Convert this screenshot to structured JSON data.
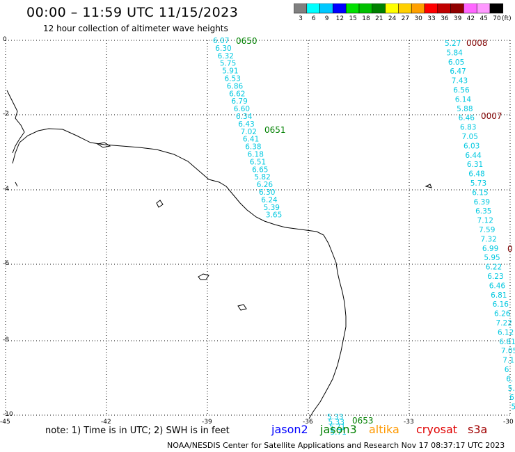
{
  "header": {
    "title": "00:00 – 11:59 UTC 11/15/2023",
    "subtitle": "12 hour collection of altimeter wave heights"
  },
  "color_scale": {
    "labels": [
      "3",
      "6",
      "9",
      "12",
      "15",
      "18",
      "21",
      "24",
      "27",
      "30",
      "33",
      "36",
      "39",
      "42",
      "45",
      "70"
    ],
    "unit": "(ft)",
    "colors": [
      "#808080",
      "#00ffff",
      "#00c8ff",
      "#0000ff",
      "#00e000",
      "#00c000",
      "#008000",
      "#ffff00",
      "#ffd000",
      "#ffa000",
      "#ff0000",
      "#c00000",
      "#900000",
      "#ff66ff",
      "#ff99ff",
      "#000000"
    ]
  },
  "axes": {
    "x_ticks": [
      "-45",
      "-42",
      "-39",
      "-36",
      "-33",
      "-30"
    ],
    "y_ticks": [
      "0",
      "-2",
      "-4",
      "-6",
      "-8",
      "-10"
    ]
  },
  "tracks": [
    {
      "color": "#00c8e0",
      "values": [
        "6.07",
        "6.30",
        "6.32",
        "5.75",
        "5.91",
        "6.53",
        "6.86",
        "6.62",
        "6.79",
        "6.60",
        "6.34",
        "6.43",
        "7.02",
        "6.41",
        "6.38",
        "6.18",
        "6.51",
        "6.65",
        "5.82",
        "6.26",
        "6.30",
        "6.24",
        "5.39",
        "3.65"
      ]
    },
    {
      "color": "#00c8e0",
      "values": [
        "5.27",
        "5.84",
        "6.05",
        "6.47",
        "7.43",
        "6.56",
        "6.14",
        "5.88",
        "6.46",
        "6.83",
        "7.05",
        "6.03",
        "6.44",
        "6.31",
        "6.48",
        "5.73",
        "6.15",
        "6.39",
        "6.35",
        "7.12",
        "7.59",
        "7.32",
        "6.99",
        "5.95",
        "6.22",
        "6.23",
        "6.46",
        "6.81",
        "6.16",
        "6.26",
        "7.22",
        "6.12",
        "6.81",
        "7.05",
        "7.1",
        "6",
        "6.",
        "5.",
        "6",
        "5"
      ]
    },
    {
      "color": "#00c8e0",
      "values": [
        "5.33",
        "5.33",
        "5.71",
        "5.71"
      ]
    }
  ],
  "time_labels": [
    {
      "text": "0650",
      "color": "#008000"
    },
    {
      "text": "0651",
      "color": "#008000"
    },
    {
      "text": "0653",
      "color": "#008000"
    },
    {
      "text": "0008",
      "color": "#800000"
    },
    {
      "text": "0007",
      "color": "#800000"
    },
    {
      "text": "0",
      "color": "#800000"
    }
  ],
  "footer": {
    "note": "note: 1) Time is in UTC; 2) SWH is in feet",
    "satellites": [
      {
        "name": "jason2",
        "color": "#0000ff"
      },
      {
        "name": "jason3",
        "color": "#008000"
      },
      {
        "name": "altika",
        "color": "#ff9900"
      },
      {
        "name": "cryosat",
        "color": "#e00000"
      },
      {
        "name": "s3a",
        "color": "#a00000"
      }
    ],
    "credit": "NOAA/NESDIS Center for Satellite Applications and Research    Nov 17 08:37:17 UTC 2023"
  }
}
